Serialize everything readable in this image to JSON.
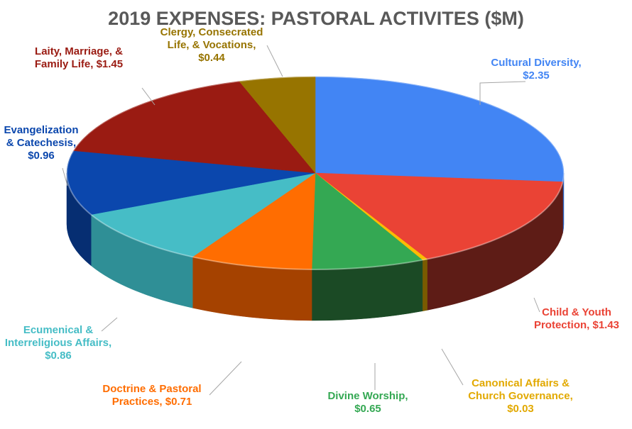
{
  "chart_data": {
    "type": "pie",
    "title": "2019 EXPENSES: PASTORAL ACTIVITES ($M)",
    "slices": [
      {
        "name": "Cultural Diversity",
        "value": 2.35,
        "color": "#4285F4",
        "side": "#2c62c0",
        "label_lines": [
          "Cultural Diversity,",
          "$2.35"
        ]
      },
      {
        "name": "Child & Youth Protection",
        "value": 1.43,
        "color": "#EA4335",
        "side": "#5e1c16",
        "label_lines": [
          "Child & Youth",
          "Protection,  $1.43"
        ]
      },
      {
        "name": "Canonical Affairs & Church Governance",
        "value": 0.03,
        "color": "#FBBC04",
        "side": "#7a5b00",
        "label_lines": [
          "Canonical Affairs &",
          "Church Governance,",
          "$0.03"
        ]
      },
      {
        "name": "Divine Worship",
        "value": 0.65,
        "color": "#34A853",
        "side": "#1b4a25",
        "label_lines": [
          "Divine Worship,",
          "$0.65"
        ]
      },
      {
        "name": "Doctrine & Pastoral Practices",
        "value": 0.71,
        "color": "#FF6D01",
        "side": "#a54200",
        "label_lines": [
          "Doctrine & Pastoral",
          "Practices,  $0.71"
        ]
      },
      {
        "name": "Ecumenical & Interreligious Affairs",
        "value": 0.86,
        "color": "#46BDC6",
        "side": "#2f8f96",
        "label_lines": [
          "Ecumenical &",
          "Interreligious Affairs,",
          "$0.86"
        ]
      },
      {
        "name": "Evangelization & Catechesis",
        "value": 0.96,
        "color": "#0B47AD",
        "side": "#062e72",
        "label_lines": [
          "Evangelization",
          "& Catechesis,",
          "$0.96"
        ]
      },
      {
        "name": "Laity, Marriage, & Family Life",
        "value": 1.45,
        "color": "#9A1B12",
        "side": "#5e100a",
        "label_lines": [
          "Laity, Marriage, &",
          "Family Life,  $1.45"
        ]
      },
      {
        "name": "Clergy, Consecrated Life, & Vocations",
        "value": 0.44,
        "color": "#977400",
        "side": "#5f4900",
        "label_lines": [
          "Clergy, Consecrated",
          "Life, & Vocations,",
          "$0.44"
        ]
      }
    ],
    "label_colors": [
      "#4285F4",
      "#EA4335",
      "#E2A900",
      "#34A853",
      "#FF6D01",
      "#46BDC6",
      "#0B47AD",
      "#9A1B12",
      "#977400"
    ]
  }
}
